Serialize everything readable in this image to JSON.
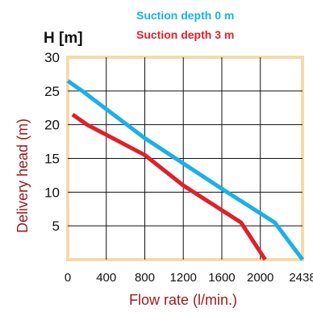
{
  "chart_data": {
    "type": "line",
    "title": "",
    "ylabel": "Delivery head (m)",
    "y_unit": "H [m]",
    "xlabel": "Flow rate  (l/min.)",
    "xlim": [
      0,
      2438
    ],
    "ylim": [
      0,
      30
    ],
    "x_ticks": [
      {
        "value": 0,
        "label": "0"
      },
      {
        "value": 400,
        "label": "400"
      },
      {
        "value": 800,
        "label": "800"
      },
      {
        "value": 1200,
        "label": "1200"
      },
      {
        "value": 1600,
        "label": "1600"
      },
      {
        "value": 2000,
        "label": "2000"
      },
      {
        "value": 2438,
        "label": "2438"
      }
    ],
    "y_ticks": [
      {
        "value": 5,
        "label": "5"
      },
      {
        "value": 10,
        "label": "10"
      },
      {
        "value": 15,
        "label": "15"
      },
      {
        "value": 20,
        "label": "20"
      },
      {
        "value": 25,
        "label": "25"
      },
      {
        "value": 30,
        "label": "30"
      }
    ],
    "grid": true,
    "legend_position": "top-right",
    "frame_color": "#f7d9a8",
    "series": [
      {
        "name": "Suction depth 0 m",
        "color": "#1bb0e6",
        "x": [
          0,
          150,
          800,
          1600,
          2150,
          2438
        ],
        "y": [
          26.5,
          25,
          18,
          10.5,
          5.5,
          0
        ]
      },
      {
        "name": "Suction depth 3 m",
        "color": "#e0202a",
        "x": [
          50,
          200,
          800,
          1200,
          1800,
          2050
        ],
        "y": [
          21.5,
          20,
          15.5,
          11,
          5.5,
          0
        ]
      }
    ]
  }
}
